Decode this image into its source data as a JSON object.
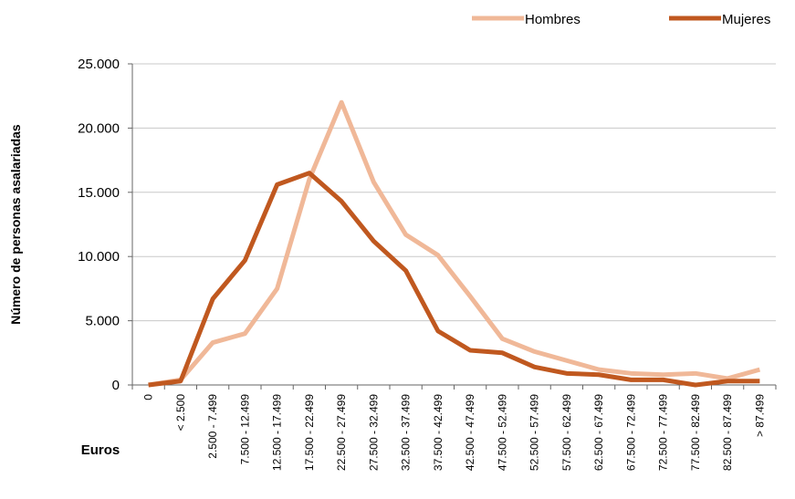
{
  "chart_data": {
    "type": "line",
    "y_label": "Número de personas asalariadas",
    "x_label": "Euros",
    "categories": [
      "0",
      "< 2.500",
      "2.500 - 7.499",
      "7.500 - 12.499",
      "12.500 - 17.499",
      "17.500 - 22.499",
      "22.500 - 27.499",
      "27.500 - 32.499",
      "32.500 - 37.499",
      "37.500 - 42.499",
      "42.500 - 47.499",
      "47.500 - 52.499",
      "52.500 - 57.499",
      "57.500 - 62.499",
      "62.500 - 67.499",
      "67.500 - 72.499",
      "72.500 - 77.499",
      "77.500 - 82.499",
      "82.500 - 87.499",
      "> 87.499"
    ],
    "series": [
      {
        "name": "Hombres",
        "color": "#f0b898",
        "values": [
          0,
          400,
          3300,
          4000,
          7500,
          16000,
          22000,
          15800,
          11700,
          10100,
          6900,
          3600,
          2600,
          1900,
          1200,
          900,
          800,
          900,
          500,
          1200
        ]
      },
      {
        "name": "Mujeres",
        "color": "#c0581f",
        "values": [
          0,
          300,
          6700,
          9700,
          15600,
          16500,
          14300,
          11200,
          8900,
          4200,
          2700,
          2500,
          1400,
          900,
          800,
          400,
          400,
          0,
          300,
          300
        ]
      }
    ],
    "ylim": [
      0,
      25000
    ],
    "yticks": [
      0,
      {
        "value": 5000,
        "label": "5.000"
      },
      {
        "value": 10000,
        "label": "10.000"
      },
      {
        "value": 15000,
        "label": "15.000"
      },
      {
        "value": 20000,
        "label": "20.000"
      },
      {
        "value": 25000,
        "label": "25.000"
      }
    ],
    "grid": true,
    "legend": "top-right"
  }
}
